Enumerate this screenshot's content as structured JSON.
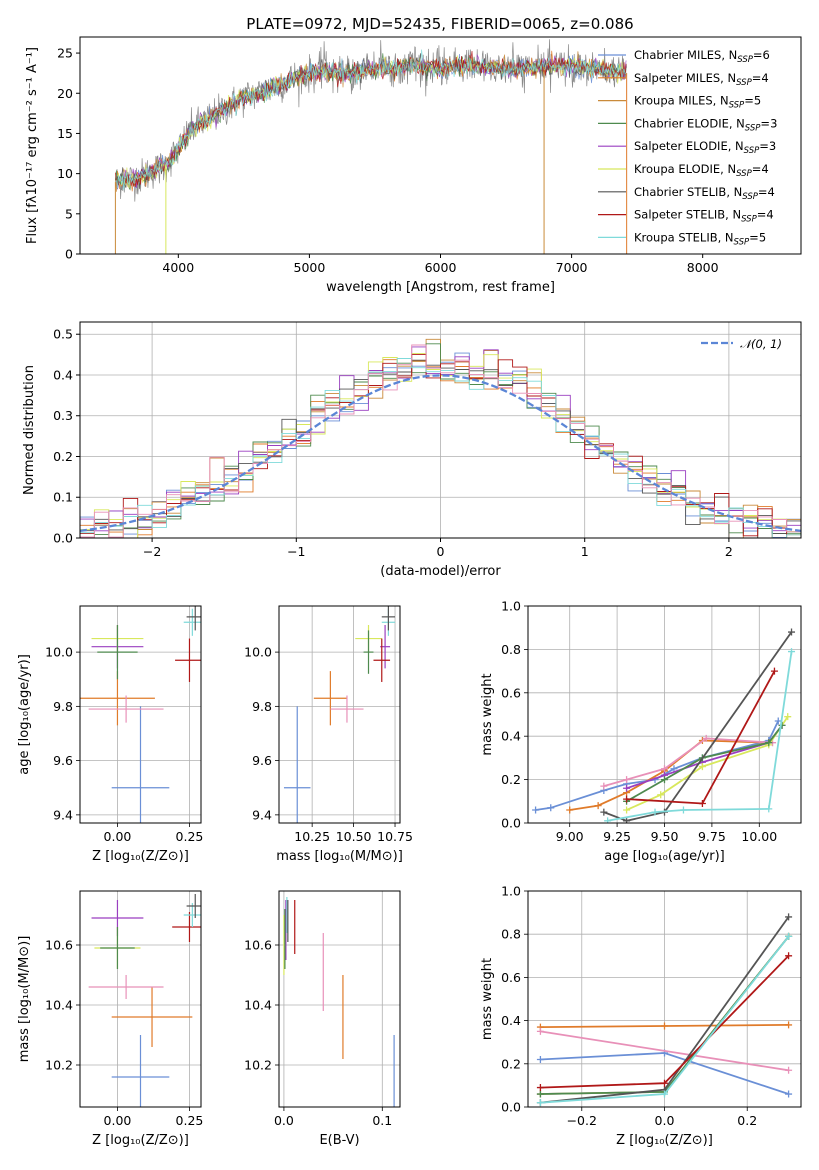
{
  "title": "PLATE=0972, MJD=52435, FIBERID=0065, z=0.086",
  "colors": {
    "chabrier_miles": "#6a8fd6",
    "salpeter_miles": "#e07b2a",
    "kroupa_miles": "#c98a3a",
    "chabrier_elodie": "#4e8a4e",
    "salpeter_elodie": "#9a3fc0",
    "kroupa_elodie": "#d8e85c",
    "chabrier_stelib": "#555555",
    "salpeter_stelib": "#b01818",
    "kroupa_stelib": "#7fdada",
    "pink": "#e890b8",
    "gaussian": "#5b86d6"
  },
  "chart_data": [
    {
      "id": "spectrum",
      "type": "line",
      "title": "PLATE=0972, MJD=52435, FIBERID=0065, z=0.086",
      "xlabel": "wavelength [Angstrom, rest frame]",
      "ylabel": "Flux [fλ10⁻¹⁷ erg cm⁻² s⁻¹ A⁻¹]",
      "xlim": [
        3250,
        8750
      ],
      "ylim": [
        0,
        27
      ],
      "xticks": [
        "4000",
        "5000",
        "6000",
        "7000",
        "8000"
      ],
      "yticks": [
        "0",
        "5",
        "10",
        "15",
        "20",
        "25"
      ],
      "grid": false,
      "legend_position": "top-right",
      "series": [
        {
          "name": "Chabrier MILES",
          "nssp": "6",
          "color": "#6a8fd6"
        },
        {
          "name": "Salpeter MILES",
          "nssp": "4",
          "color": "#e07b2a"
        },
        {
          "name": "Kroupa MILES",
          "nssp": "5",
          "color": "#c98a3a"
        },
        {
          "name": "Chabrier ELODIE",
          "nssp": "3",
          "color": "#4e8a4e"
        },
        {
          "name": "Salpeter ELODIE",
          "nssp": "3",
          "color": "#9a3fc0"
        },
        {
          "name": "Kroupa ELODIE",
          "nssp": "4",
          "color": "#d8e85c"
        },
        {
          "name": "Chabrier STELIB",
          "nssp": "4",
          "color": "#555555"
        },
        {
          "name": "Salpeter STELIB",
          "nssp": "4",
          "color": "#b01818"
        },
        {
          "name": "Kroupa STELIB",
          "nssp": "5",
          "color": "#7fdada"
        }
      ],
      "continuum": {
        "x": [
          3520,
          3700,
          3900,
          4000,
          4100,
          4300,
          4500,
          4700,
          4900,
          5100,
          5300,
          5500,
          5800,
          6000,
          6200,
          6500,
          6800,
          7000,
          7200,
          7420
        ],
        "y": [
          9,
          9.5,
          11,
          13,
          15.5,
          17.5,
          19.5,
          20.5,
          22,
          22.8,
          22.5,
          23,
          23.5,
          23,
          23.5,
          23,
          23.3,
          23.5,
          23,
          22.5
        ]
      }
    },
    {
      "id": "residual-hist",
      "type": "histogram",
      "xlabel": "(data-model)/error",
      "ylabel": "Normed distribution",
      "xlim": [
        -2.5,
        2.5
      ],
      "ylim": [
        0,
        0.53
      ],
      "xticks": [
        "−2",
        "−1",
        "0",
        "1",
        "2"
      ],
      "yticks": [
        "0.0",
        "0.1",
        "0.2",
        "0.3",
        "0.4",
        "0.5"
      ],
      "grid": true,
      "legend_position": "top-right",
      "legend_label": "𝒩(0, 1)",
      "bin_width": 0.1
    },
    {
      "id": "age-vs-Z",
      "type": "scatter",
      "xlabel": "Z [log₁₀(Z/Z⊙)]",
      "ylabel": "age  [log₁₀(age/yr)]",
      "xlim": [
        -0.13,
        0.29
      ],
      "ylim": [
        9.37,
        10.17
      ],
      "xticks": [
        {
          "v": 0,
          "t": "0.00"
        },
        {
          "v": 0.25,
          "t": "0.25"
        }
      ],
      "yticks": [
        {
          "v": 9.4,
          "t": "9.4"
        },
        {
          "v": 9.6,
          "t": "9.6"
        },
        {
          "v": 9.8,
          "t": "9.8"
        },
        {
          "v": 10.0,
          "t": "10.0"
        }
      ],
      "grid": true,
      "points": [
        {
          "x": 0.08,
          "y": 9.5,
          "xe": 0.1,
          "ye": 0.3,
          "color": "#6a8fd6"
        },
        {
          "x": 0.0,
          "y": 9.83,
          "xe": 0.13,
          "ye": 0.1,
          "color": "#e07b2a"
        },
        {
          "x": 0.03,
          "y": 9.79,
          "xe": 0.13,
          "ye": 0.05,
          "color": "#e890b8"
        },
        {
          "x": 0.0,
          "y": 10.02,
          "xe": 0.09,
          "ye": 0.08,
          "color": "#9a3fc0"
        },
        {
          "x": 0.0,
          "y": 10.05,
          "xe": 0.09,
          "ye": 0.05,
          "color": "#d8e85c"
        },
        {
          "x": 0.0,
          "y": 10.0,
          "xe": 0.07,
          "ye": 0.1,
          "color": "#4e8a4e"
        },
        {
          "x": 0.25,
          "y": 9.97,
          "xe": 0.05,
          "ye": 0.08,
          "color": "#b01818"
        },
        {
          "x": 0.26,
          "y": 10.11,
          "xe": 0.03,
          "ye": 0.05,
          "color": "#7fdada"
        },
        {
          "x": 0.27,
          "y": 10.13,
          "xe": 0.03,
          "ye": 0.05,
          "color": "#555555"
        }
      ]
    },
    {
      "id": "age-vs-mass",
      "type": "scatter",
      "xlabel": "mass [log₁₀(M/M⊙)]",
      "ylabel": "",
      "xlim": [
        10.05,
        10.78
      ],
      "ylim": [
        9.37,
        10.17
      ],
      "xticks": [
        {
          "v": 10.25,
          "t": "10.25"
        },
        {
          "v": 10.5,
          "t": "10.50"
        },
        {
          "v": 10.75,
          "t": "10.75"
        }
      ],
      "yticks": [
        {
          "v": 9.4,
          "t": "9.4"
        },
        {
          "v": 9.6,
          "t": "9.6"
        },
        {
          "v": 9.8,
          "t": "9.8"
        },
        {
          "v": 10.0,
          "t": "10.0"
        }
      ],
      "grid": true,
      "points": [
        {
          "x": 10.16,
          "y": 9.5,
          "xe": 0.08,
          "ye": 0.3,
          "color": "#6a8fd6"
        },
        {
          "x": 10.36,
          "y": 9.83,
          "xe": 0.1,
          "ye": 0.1,
          "color": "#e07b2a"
        },
        {
          "x": 10.46,
          "y": 9.79,
          "xe": 0.1,
          "ye": 0.05,
          "color": "#e890b8"
        },
        {
          "x": 10.69,
          "y": 10.02,
          "xe": 0.03,
          "ye": 0.08,
          "color": "#9a3fc0"
        },
        {
          "x": 10.59,
          "y": 10.05,
          "xe": 0.08,
          "ye": 0.05,
          "color": "#d8e85c"
        },
        {
          "x": 10.59,
          "y": 10.0,
          "xe": 0.03,
          "ye": 0.08,
          "color": "#4e8a4e"
        },
        {
          "x": 10.67,
          "y": 9.97,
          "xe": 0.05,
          "ye": 0.08,
          "color": "#b01818"
        },
        {
          "x": 10.71,
          "y": 10.11,
          "xe": 0.04,
          "ye": 0.05,
          "color": "#7fdada"
        },
        {
          "x": 10.71,
          "y": 10.13,
          "xe": 0.04,
          "ye": 0.05,
          "color": "#555555"
        }
      ]
    },
    {
      "id": "weight-vs-age",
      "type": "line",
      "xlabel": "age  [log₁₀(age/yr)]",
      "ylabel": "mass weight",
      "xlim": [
        8.78,
        10.22
      ],
      "ylim": [
        0,
        1.0
      ],
      "xticks": [
        {
          "v": 9.0,
          "t": "9.00"
        },
        {
          "v": 9.25,
          "t": "9.25"
        },
        {
          "v": 9.5,
          "t": "9.50"
        },
        {
          "v": 9.75,
          "t": "9.75"
        },
        {
          "v": 10.0,
          "t": "10.00"
        }
      ],
      "yticks": [
        {
          "v": 0,
          "t": "0.0"
        },
        {
          "v": 0.2,
          "t": "0.2"
        },
        {
          "v": 0.4,
          "t": "0.4"
        },
        {
          "v": 0.6,
          "t": "0.6"
        },
        {
          "v": 0.8,
          "t": "0.8"
        },
        {
          "v": 1.0,
          "t": "1.0"
        }
      ],
      "grid": true,
      "series": [
        {
          "color": "#6a8fd6",
          "x": [
            8.82,
            8.9,
            9.18,
            9.3,
            9.45,
            9.55,
            9.7,
            10.05,
            10.1
          ],
          "y": [
            0.06,
            0.07,
            0.15,
            0.18,
            0.2,
            0.25,
            0.3,
            0.38,
            0.47
          ]
        },
        {
          "color": "#e07b2a",
          "x": [
            9.0,
            9.15,
            9.3,
            9.5,
            9.7,
            10.05
          ],
          "y": [
            0.06,
            0.08,
            0.14,
            0.24,
            0.38,
            0.37
          ]
        },
        {
          "color": "#e890b8",
          "x": [
            9.18,
            9.3,
            9.5,
            9.72,
            10.07
          ],
          "y": [
            0.17,
            0.2,
            0.25,
            0.39,
            0.37
          ]
        },
        {
          "color": "#9a3fc0",
          "x": [
            9.3,
            9.5,
            9.7,
            10.05,
            10.12
          ],
          "y": [
            0.16,
            0.22,
            0.28,
            0.37,
            0.45
          ]
        },
        {
          "color": "#d8e85c",
          "x": [
            9.3,
            9.48,
            9.7,
            10.05,
            10.15
          ],
          "y": [
            0.06,
            0.13,
            0.26,
            0.36,
            0.49
          ]
        },
        {
          "color": "#4e8a4e",
          "x": [
            9.3,
            9.5,
            9.7,
            10.05,
            10.12
          ],
          "y": [
            0.1,
            0.2,
            0.3,
            0.37,
            0.45
          ]
        },
        {
          "color": "#555555",
          "x": [
            9.18,
            9.3,
            9.5,
            10.17
          ],
          "y": [
            0.05,
            0.01,
            0.05,
            0.88
          ]
        },
        {
          "color": "#b01818",
          "x": [
            9.3,
            9.7,
            10.08
          ],
          "y": [
            0.11,
            0.09,
            0.7
          ]
        },
        {
          "color": "#7fdada",
          "x": [
            9.2,
            9.45,
            9.6,
            10.05,
            10.17
          ],
          "y": [
            0.01,
            0.05,
            0.06,
            0.065,
            0.79
          ]
        }
      ]
    },
    {
      "id": "mass-vs-Z",
      "type": "scatter",
      "xlabel": "Z [log₁₀(Z/Z⊙)]",
      "ylabel": "mass [log₁₀(M/M⊙)]",
      "xlim": [
        -0.13,
        0.29
      ],
      "ylim": [
        10.06,
        10.78
      ],
      "xticks": [
        {
          "v": 0,
          "t": "0.00"
        },
        {
          "v": 0.25,
          "t": "0.25"
        }
      ],
      "yticks": [
        {
          "v": 10.2,
          "t": "10.2"
        },
        {
          "v": 10.4,
          "t": "10.4"
        },
        {
          "v": 10.6,
          "t": "10.6"
        }
      ],
      "grid": true,
      "points": [
        {
          "x": 0.08,
          "y": 10.16,
          "xe": 0.1,
          "ye": 0.14,
          "color": "#6a8fd6"
        },
        {
          "x": 0.12,
          "y": 10.36,
          "xe": 0.14,
          "ye": 0.1,
          "color": "#e07b2a"
        },
        {
          "x": 0.03,
          "y": 10.46,
          "xe": 0.13,
          "ye": 0.04,
          "color": "#e890b8"
        },
        {
          "x": 0.0,
          "y": 10.69,
          "xe": 0.09,
          "ye": 0.06,
          "color": "#9a3fc0"
        },
        {
          "x": 0.0,
          "y": 10.59,
          "xe": 0.08,
          "ye": 0.07,
          "color": "#d8e85c"
        },
        {
          "x": 0.0,
          "y": 10.59,
          "xe": 0.06,
          "ye": 0.07,
          "color": "#4e8a4e"
        },
        {
          "x": 0.25,
          "y": 10.66,
          "xe": 0.06,
          "ye": 0.05,
          "color": "#b01818"
        },
        {
          "x": 0.26,
          "y": 10.7,
          "xe": 0.03,
          "ye": 0.04,
          "color": "#7fdada"
        },
        {
          "x": 0.27,
          "y": 10.73,
          "xe": 0.03,
          "ye": 0.04,
          "color": "#555555"
        }
      ]
    },
    {
      "id": "mass-vs-ebv",
      "type": "scatter",
      "xlabel": "E(B-V)",
      "ylabel": "",
      "xlim": [
        -0.005,
        0.118
      ],
      "ylim": [
        10.06,
        10.78
      ],
      "xticks": [
        {
          "v": 0,
          "t": "0.0"
        },
        {
          "v": 0.1,
          "t": "0.1"
        }
      ],
      "yticks": [
        {
          "v": 10.2,
          "t": "10.2"
        },
        {
          "v": 10.4,
          "t": "10.4"
        },
        {
          "v": 10.6,
          "t": "10.6"
        }
      ],
      "grid": true,
      "points": [
        {
          "x": 0.112,
          "y": 10.16,
          "xe": 0,
          "ye": 0.14,
          "color": "#6a8fd6"
        },
        {
          "x": 0.06,
          "y": 10.36,
          "xe": 0,
          "ye": 0.14,
          "color": "#e07b2a"
        },
        {
          "x": 0.04,
          "y": 10.51,
          "xe": 0,
          "ye": 0.13,
          "color": "#e890b8"
        },
        {
          "x": 0.002,
          "y": 10.65,
          "xe": 0,
          "ye": 0.1,
          "color": "#9a3fc0"
        },
        {
          "x": 0.0,
          "y": 10.6,
          "xe": 0,
          "ye": 0.1,
          "color": "#d8e85c"
        },
        {
          "x": 0.001,
          "y": 10.62,
          "xe": 0,
          "ye": 0.1,
          "color": "#4e8a4e"
        },
        {
          "x": 0.011,
          "y": 10.66,
          "xe": 0,
          "ye": 0.09,
          "color": "#b01818"
        },
        {
          "x": 0.003,
          "y": 10.7,
          "xe": 0,
          "ye": 0.06,
          "color": "#7fdada"
        },
        {
          "x": 0.004,
          "y": 10.68,
          "xe": 0,
          "ye": 0.07,
          "color": "#555555"
        }
      ]
    },
    {
      "id": "weight-vs-Z",
      "type": "line",
      "xlabel": "Z [log₁₀(Z/Z⊙)]",
      "ylabel": "mass weight",
      "xlim": [
        -0.33,
        0.33
      ],
      "ylim": [
        0,
        1.0
      ],
      "xticks": [
        {
          "v": -0.2,
          "t": "−0.2"
        },
        {
          "v": 0,
          "t": "0.0"
        },
        {
          "v": 0.2,
          "t": "0.2"
        }
      ],
      "yticks": [
        {
          "v": 0,
          "t": "0.0"
        },
        {
          "v": 0.2,
          "t": "0.2"
        },
        {
          "v": 0.4,
          "t": "0.4"
        },
        {
          "v": 0.6,
          "t": "0.6"
        },
        {
          "v": 0.8,
          "t": "0.8"
        },
        {
          "v": 1.0,
          "t": "1.0"
        }
      ],
      "grid": true,
      "series": [
        {
          "color": "#6a8fd6",
          "x": [
            -0.3,
            0.0,
            0.3
          ],
          "y": [
            0.22,
            0.25,
            0.06
          ]
        },
        {
          "color": "#e07b2a",
          "x": [
            -0.3,
            0.0,
            0.3
          ],
          "y": [
            0.37,
            0.375,
            0.38
          ]
        },
        {
          "color": "#e890b8",
          "x": [
            -0.3,
            0.3
          ],
          "y": [
            0.35,
            0.17
          ]
        },
        {
          "color": "#9a3fc0",
          "x": [
            -0.3,
            0.0,
            0.3
          ],
          "y": [
            0.06,
            0.07,
            0.79
          ]
        },
        {
          "color": "#d8e85c",
          "x": [
            -0.3,
            0.0,
            0.3
          ],
          "y": [
            0.06,
            0.07,
            0.79
          ]
        },
        {
          "color": "#4e8a4e",
          "x": [
            -0.3,
            0.0,
            0.3
          ],
          "y": [
            0.06,
            0.07,
            0.79
          ]
        },
        {
          "color": "#555555",
          "x": [
            -0.3,
            0.0,
            0.3
          ],
          "y": [
            0.02,
            0.08,
            0.88
          ]
        },
        {
          "color": "#b01818",
          "x": [
            -0.3,
            0.0,
            0.3
          ],
          "y": [
            0.09,
            0.11,
            0.7
          ]
        },
        {
          "color": "#7fdada",
          "x": [
            -0.3,
            0.0,
            0.3
          ],
          "y": [
            0.02,
            0.06,
            0.79
          ]
        }
      ]
    }
  ]
}
